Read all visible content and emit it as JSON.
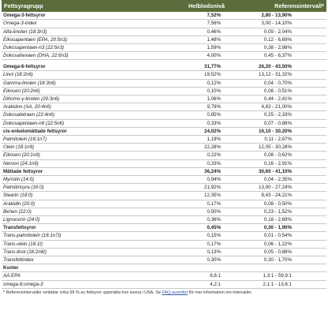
{
  "header": {
    "col_name": "Fettsyragrupp",
    "col_blood": "Helblodsnivå",
    "col_ref": "Referensintervall*"
  },
  "rows": [
    {
      "kind": "group",
      "name": "Omega-3-fettsyror",
      "value": "7,52%",
      "ref": "2,80 - 13,90%"
    },
    {
      "kind": "item",
      "name": "Omega-3-index",
      "value": "7,56%",
      "ref": "3,00 - 14,10%"
    },
    {
      "kind": "item",
      "name": "Alfa-linolen (18:3n3)",
      "value": "0,46%",
      "ref": "0,09 - 2,04%"
    },
    {
      "kind": "item",
      "name": "Eikosapentaen (EPA, 20:5n3)",
      "value": "1,48%",
      "ref": "0,12 - 6,69%"
    },
    {
      "kind": "item",
      "name": "Dokosapentaen-n3 (22:5n3)",
      "value": "1,59%",
      "ref": "0,38 - 2,98%"
    },
    {
      "kind": "item",
      "name": "Dokosahexaen (DHA, 22:6n3)",
      "value": "4,00%",
      "ref": "0,45 - 6,37%"
    },
    {
      "kind": "spacer"
    },
    {
      "kind": "group",
      "name": "Omega-6-fettsyror",
      "value": "31,77%",
      "ref": "26,20 - 43,50%"
    },
    {
      "kind": "item",
      "name": "Linol (18:2n6)",
      "value": "19,52%",
      "ref": "13,12 - 31,32%"
    },
    {
      "kind": "item",
      "name": "Gamma-linolen (18:3n6)",
      "value": "0,12%",
      "ref": "0,04 - 0,70%"
    },
    {
      "kind": "item",
      "name": "Eikosen (20:2n6)",
      "value": "0,10%",
      "ref": "0,08 - 0,51%"
    },
    {
      "kind": "item",
      "name": "Dihomo-γ-linolen (20:3n6)",
      "value": "1,06%",
      "ref": "0,44 - 2,41%"
    },
    {
      "kind": "item",
      "name": "Arakidon (AA, 20:4n6)",
      "value": "9,79%",
      "ref": "4,83 - 21,00%"
    },
    {
      "kind": "item",
      "name": "Dokosatetraen (22:4n6)",
      "value": "0,85%",
      "ref": "0,25 - 2,33%"
    },
    {
      "kind": "item",
      "name": "Dokosapentaen-n6 (22:5n6)",
      "value": "0,33%",
      "ref": "0,07 - 0,86%"
    },
    {
      "kind": "group",
      "name": "cis-enkelomättade fettsyror",
      "value": "24,02%",
      "ref": "16,10 - 30,20%"
    },
    {
      "kind": "item",
      "name": "Palmitolein (16:1n7)",
      "value": "1,19%",
      "ref": "0,11 - 2,87%"
    },
    {
      "kind": "item",
      "name": "Olein (18:1n9)",
      "value": "22,28%",
      "ref": "12,05 - 30,28%"
    },
    {
      "kind": "item",
      "name": "Eikosen (20:1n9)",
      "value": "0,22%",
      "ref": "0,08 - 0,62%"
    },
    {
      "kind": "item",
      "name": "Nervon (24:1n9)",
      "value": "0,33%",
      "ref": "0,16 - 2,91%"
    },
    {
      "kind": "group",
      "name": "Mättade fettsyror",
      "value": "36,24%",
      "ref": "30,60 - 41,10%"
    },
    {
      "kind": "item",
      "name": "Myristin (14:0)",
      "value": "0,94%",
      "ref": "0,04 - 2,35%"
    },
    {
      "kind": "item",
      "name": "Palmitinsyra (16:0)",
      "value": "21,92%",
      "ref": "13,90 - 27,24%"
    },
    {
      "kind": "item",
      "name": "Stearin (18:0)",
      "value": "12,35%",
      "ref": "8,43 - 24,21%"
    },
    {
      "kind": "item",
      "name": "Arakidin (20:0)",
      "value": "0,17%",
      "ref": "0,08 - 0,50%"
    },
    {
      "kind": "item",
      "name": "Behen (22:0)",
      "value": "0,50%",
      "ref": "0,23 - 1,52%"
    },
    {
      "kind": "item",
      "name": "Lignocerin (24:0)",
      "value": "0,36%",
      "ref": "0,18 - 2,69%"
    },
    {
      "kind": "group",
      "name": "Transfettsyror",
      "value": "0,45%",
      "ref": "0,30 - 1,90%"
    },
    {
      "kind": "item",
      "name": "Trans-palmitolein (16:1n7t)",
      "value": "0,15%",
      "ref": "0,01 - 0,54%"
    },
    {
      "kind": "item",
      "name": "Trans-olein (18:1t)",
      "value": "0,17%",
      "ref": "0,06 - 1,22%"
    },
    {
      "kind": "item",
      "name": "Trans-linol (18:2n6t)",
      "value": "0,13%",
      "ref": "0,05 - 0,88%"
    },
    {
      "kind": "item",
      "name": "Transfettindex",
      "value": "0,30%",
      "ref": "0,30 - 1,70%"
    },
    {
      "kind": "group",
      "name": "Kvoter",
      "value": "",
      "ref": ""
    },
    {
      "kind": "item",
      "name": "AA:EPA",
      "value": "6,6:1",
      "ref": "1,3:1 - 59,9:1"
    },
    {
      "kind": "item",
      "name": "omega-6:omega-3",
      "value": "4,2:1",
      "ref": "2,1:1 - 13,6:1"
    }
  ],
  "footnote": {
    "before": "* Referensintervaller omfattar cirka 99 % av fettsyror uppmätta hos vuxna i USA. Se ",
    "link": "FAQ-avsnittet",
    "after": " för mer information om intervaller."
  }
}
